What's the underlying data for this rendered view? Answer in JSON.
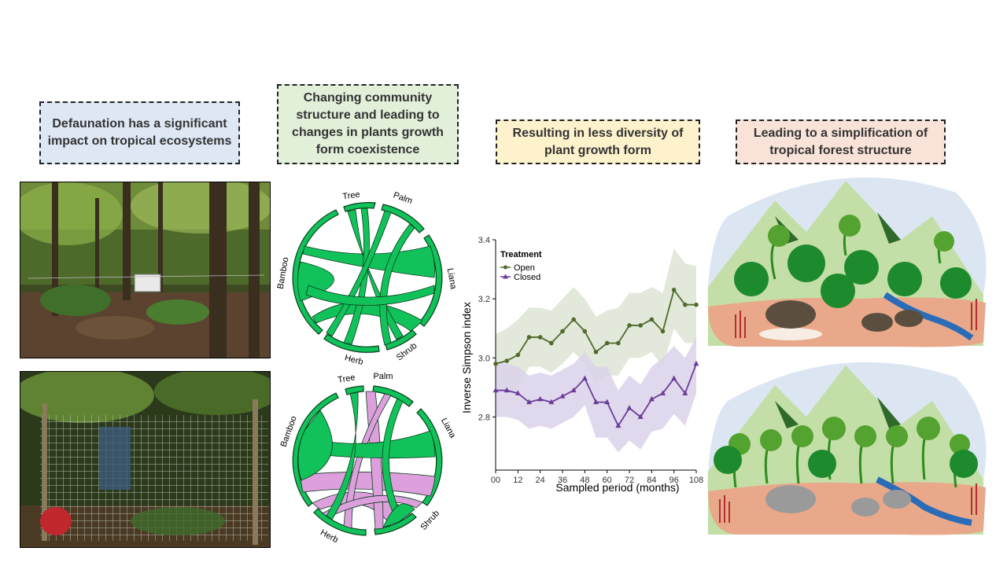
{
  "panels": {
    "p1": "Defaunation has a significant impact on tropical ecosystems",
    "p2": "Changing community structure and leading to changes in plants growth form coexistence",
    "p3": "Resulting in less diversity of plant growth form",
    "p4": "Leading to a simplification of tropical forest structure"
  },
  "chord_labels": {
    "tree": "Tree",
    "palm": "Palm",
    "liana": "Liana",
    "shrub": "Shrub",
    "herb": "Herb",
    "bamboo": "Bamboo"
  },
  "colors": {
    "open": "#4f6b2d",
    "closed": "#6a3d9a",
    "chord_green": "#11c25a",
    "chord_pink": "#dda0dd"
  },
  "chart_data": {
    "type": "line",
    "xlabel": "Sampled period (months)",
    "ylabel": "Inverse Simpson index",
    "legend_title": "Treatment",
    "x_ticks": [
      0,
      12,
      24,
      36,
      48,
      60,
      72,
      84,
      96,
      108
    ],
    "y_ticks": [
      2.8,
      3.0,
      3.2,
      3.4
    ],
    "ylim": [
      2.62,
      3.4
    ],
    "xlim": [
      0,
      108
    ],
    "x": [
      0,
      6,
      12,
      18,
      24,
      30,
      36,
      42,
      48,
      54,
      60,
      66,
      72,
      78,
      84,
      90,
      96,
      102,
      108
    ],
    "series": [
      {
        "name": "Open",
        "marker": "circle",
        "values": [
          2.98,
          2.99,
          3.01,
          3.07,
          3.07,
          3.05,
          3.09,
          3.13,
          3.09,
          3.02,
          3.05,
          3.05,
          3.11,
          3.11,
          3.13,
          3.09,
          3.23,
          3.18,
          3.18
        ],
        "upper": [
          3.08,
          3.1,
          3.13,
          3.17,
          3.17,
          3.16,
          3.2,
          3.24,
          3.2,
          3.14,
          3.16,
          3.17,
          3.22,
          3.22,
          3.24,
          3.22,
          3.37,
          3.32,
          3.31
        ],
        "lower": [
          2.88,
          2.89,
          2.9,
          2.97,
          2.97,
          2.95,
          2.98,
          3.02,
          2.98,
          2.91,
          2.94,
          2.94,
          3.0,
          3.0,
          3.02,
          2.97,
          3.1,
          3.05,
          3.05
        ]
      },
      {
        "name": "Closed",
        "marker": "triangle",
        "values": [
          2.89,
          2.89,
          2.88,
          2.85,
          2.86,
          2.85,
          2.87,
          2.89,
          2.93,
          2.85,
          2.85,
          2.77,
          2.83,
          2.8,
          2.86,
          2.88,
          2.93,
          2.88,
          2.98
        ],
        "upper": [
          2.98,
          2.98,
          2.97,
          2.94,
          2.95,
          2.94,
          2.96,
          2.98,
          3.02,
          2.97,
          2.97,
          2.89,
          2.94,
          2.91,
          2.97,
          3.0,
          3.04,
          3.0,
          3.07
        ],
        "lower": [
          2.8,
          2.8,
          2.79,
          2.76,
          2.77,
          2.76,
          2.78,
          2.8,
          2.84,
          2.73,
          2.73,
          2.68,
          2.72,
          2.69,
          2.75,
          2.76,
          2.81,
          2.77,
          2.88
        ]
      }
    ]
  }
}
